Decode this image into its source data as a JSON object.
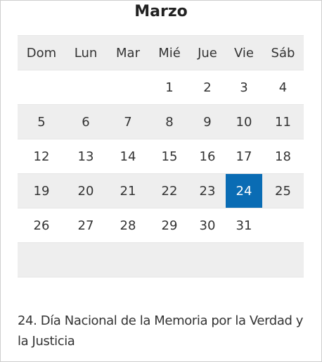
{
  "calendar": {
    "month": "Marzo",
    "weekdays": [
      "Dom",
      "Lun",
      "Mar",
      "Mié",
      "Jue",
      "Vie",
      "Sáb"
    ],
    "weeks": [
      [
        "",
        "",
        "",
        "1",
        "2",
        "3",
        "4"
      ],
      [
        "5",
        "6",
        "7",
        "8",
        "9",
        "10",
        "11"
      ],
      [
        "12",
        "13",
        "14",
        "15",
        "16",
        "17",
        "18"
      ],
      [
        "19",
        "20",
        "21",
        "22",
        "23",
        "24",
        "25"
      ],
      [
        "26",
        "27",
        "28",
        "29",
        "30",
        "31",
        ""
      ],
      [
        "",
        "",
        "",
        "",
        "",
        "",
        ""
      ]
    ],
    "highlighted_day": "24",
    "highlight_color": "#0a6cb4",
    "shaded_row_color": "#eeeeee"
  },
  "events": [
    {
      "text": "24. Día Nacional de la Memoria por la Verdad y la Justicia"
    }
  ]
}
